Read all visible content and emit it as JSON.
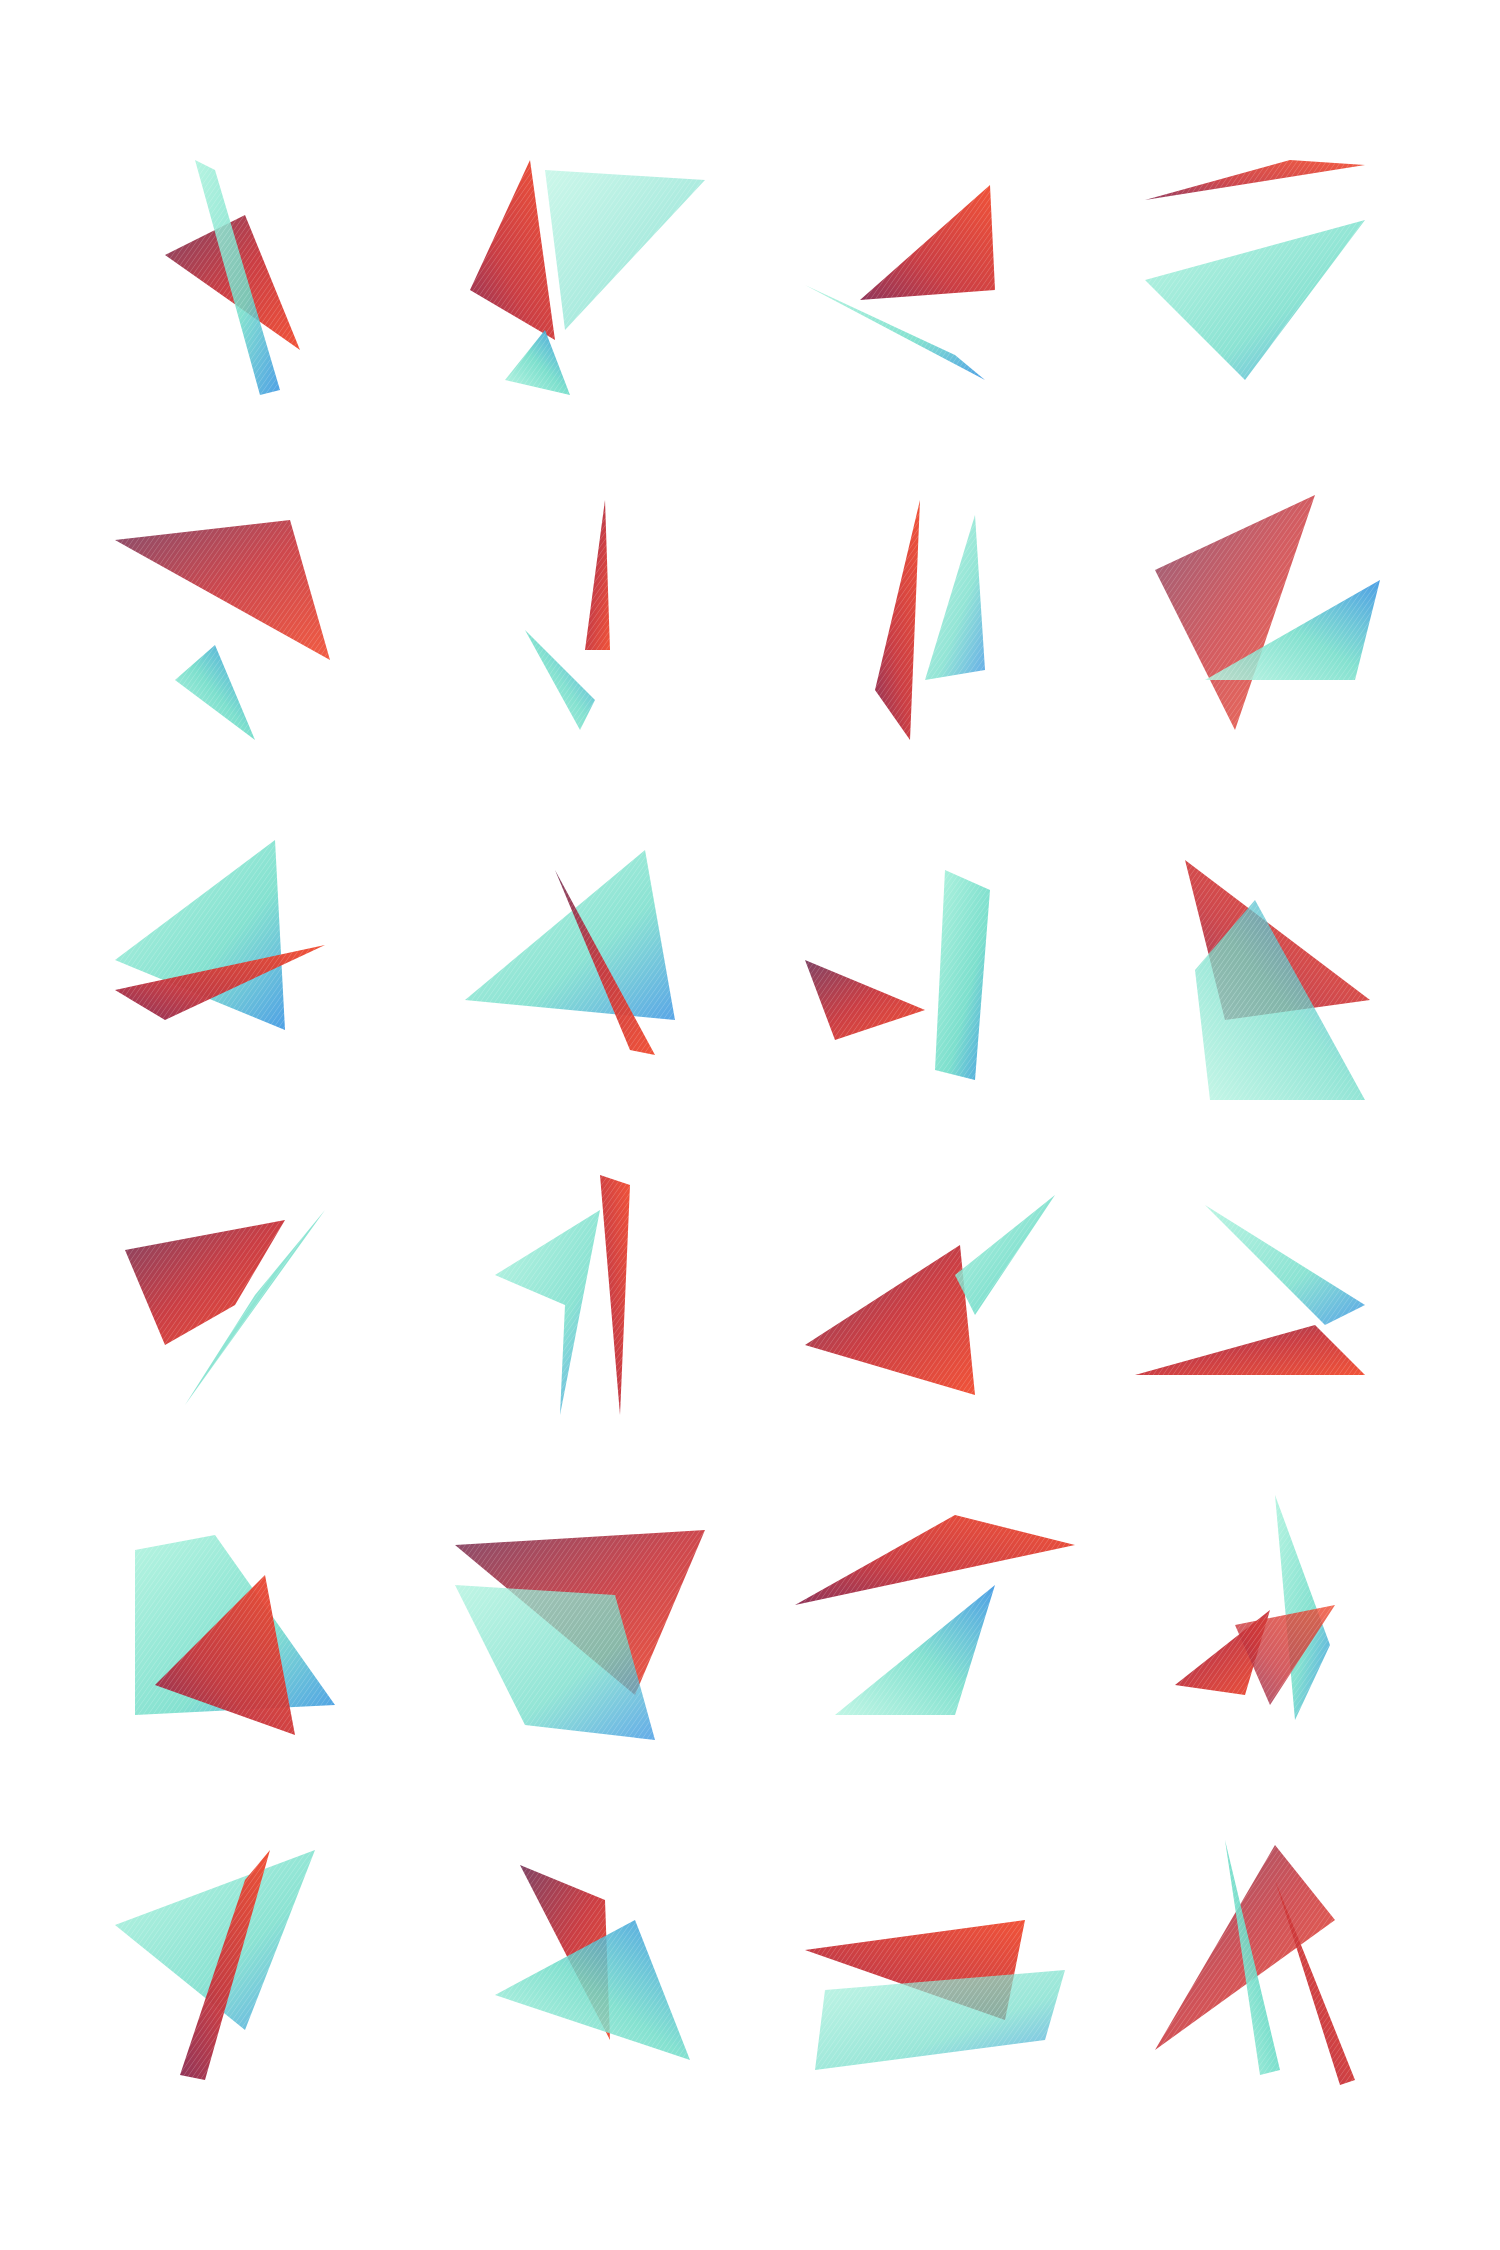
{
  "artwork": {
    "kind": "grid of abstract ribbon shapes",
    "rows": 6,
    "columns": 4,
    "palette": {
      "background": "#ffffff",
      "red": "#e8462e",
      "crimson": "#a8243f",
      "plum": "#7a3a5c",
      "mint": "#8fe8cf",
      "aqua": "#5fd6c8",
      "blue": "#2f8fe0"
    },
    "shapes": [
      {
        "id": 1,
        "colors": [
          "red",
          "plum",
          "mint"
        ]
      },
      {
        "id": 2,
        "colors": [
          "red",
          "mint",
          "blue"
        ]
      },
      {
        "id": 3,
        "colors": [
          "red",
          "plum",
          "aqua"
        ]
      },
      {
        "id": 4,
        "colors": [
          "red",
          "mint",
          "blue"
        ]
      },
      {
        "id": 5,
        "colors": [
          "plum",
          "red",
          "blue"
        ]
      },
      {
        "id": 6,
        "colors": [
          "crimson",
          "blue",
          "aqua"
        ]
      },
      {
        "id": 7,
        "colors": [
          "crimson",
          "red",
          "mint"
        ]
      },
      {
        "id": 8,
        "colors": [
          "plum",
          "red",
          "blue"
        ]
      },
      {
        "id": 9,
        "colors": [
          "mint",
          "red",
          "blue"
        ]
      },
      {
        "id": 10,
        "colors": [
          "mint",
          "blue",
          "crimson"
        ]
      },
      {
        "id": 11,
        "colors": [
          "red",
          "crimson",
          "mint"
        ]
      },
      {
        "id": 12,
        "colors": [
          "red",
          "mint",
          "blue"
        ]
      },
      {
        "id": 13,
        "colors": [
          "red",
          "plum",
          "aqua"
        ]
      },
      {
        "id": 14,
        "colors": [
          "red",
          "mint",
          "blue"
        ]
      },
      {
        "id": 15,
        "colors": [
          "plum",
          "red",
          "aqua"
        ]
      },
      {
        "id": 16,
        "colors": [
          "crimson",
          "red",
          "mint"
        ]
      },
      {
        "id": 17,
        "colors": [
          "mint",
          "blue",
          "red"
        ]
      },
      {
        "id": 18,
        "colors": [
          "red",
          "crimson",
          "mint"
        ]
      },
      {
        "id": 19,
        "colors": [
          "red",
          "plum",
          "aqua"
        ]
      },
      {
        "id": 20,
        "colors": [
          "red",
          "mint",
          "blue"
        ]
      },
      {
        "id": 21,
        "colors": [
          "mint",
          "red",
          "blue"
        ]
      },
      {
        "id": 22,
        "colors": [
          "plum",
          "red",
          "blue"
        ]
      },
      {
        "id": 23,
        "colors": [
          "mint",
          "red",
          "blue"
        ]
      },
      {
        "id": 24,
        "colors": [
          "plum",
          "red",
          "blue"
        ]
      }
    ]
  }
}
